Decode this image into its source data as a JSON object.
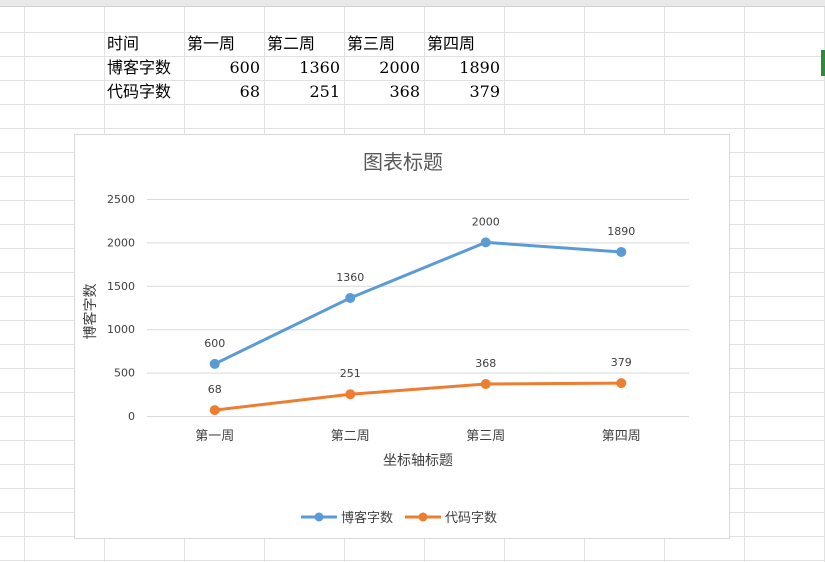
{
  "sheet": {
    "table": {
      "header": [
        "时间",
        "第一周",
        "第二周",
        "第三周",
        "第四周"
      ],
      "rows": [
        [
          "博客字数",
          "600",
          "1360",
          "2000",
          "1890"
        ],
        [
          "代码字数",
          "68",
          "251",
          "368",
          "379"
        ]
      ]
    }
  },
  "colors": {
    "series_blue": "#5b9bd5",
    "series_orange": "#ed7d31",
    "gridline": "#d9d9d9",
    "sheet_grid": "#e1e1e1"
  },
  "chart_data": {
    "type": "line",
    "title": "图表标题",
    "xlabel": "坐标轴标题",
    "ylabel": "博客字数",
    "categories": [
      "第一周",
      "第二周",
      "第三周",
      "第四周"
    ],
    "ylim": [
      0,
      2500
    ],
    "yticks": [
      0,
      500,
      1000,
      1500,
      2000,
      2500
    ],
    "grid": true,
    "legend": "bottom",
    "data_labels": true,
    "series": [
      {
        "name": "博客字数",
        "values": [
          600,
          1360,
          2000,
          1890
        ],
        "color": "#5b9bd5"
      },
      {
        "name": "代码字数",
        "values": [
          68,
          251,
          368,
          379
        ],
        "color": "#ed7d31"
      }
    ]
  }
}
